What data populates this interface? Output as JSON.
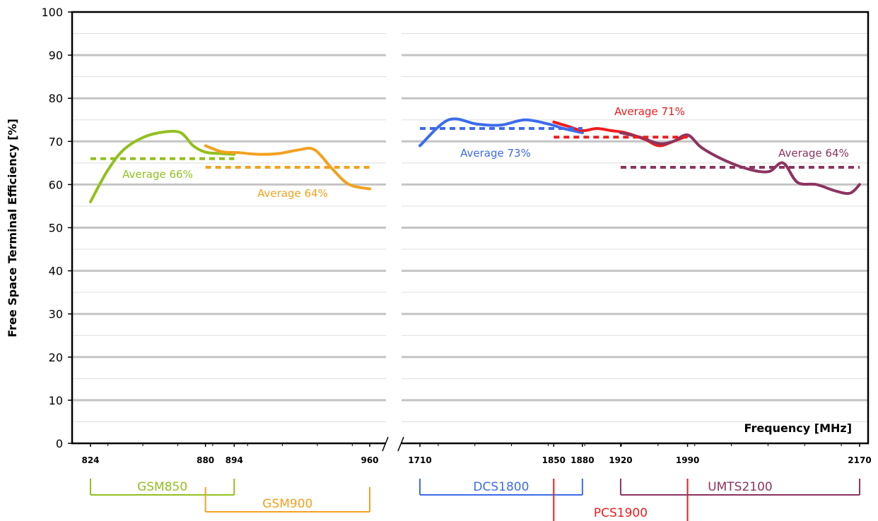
{
  "chart_data": {
    "type": "line",
    "ylabel": "Free Space Terminal Efficiency [%]",
    "xlabel": "Frequency [MHz]",
    "ylim": [
      0,
      100
    ],
    "yticks": [
      0,
      10,
      20,
      30,
      40,
      50,
      60,
      70,
      80,
      90,
      100
    ],
    "grid": true,
    "broken_x_axis": true,
    "panels": [
      {
        "xlim": [
          818,
          965
        ],
        "xticks": [
          "824",
          "880",
          "894",
          "960"
        ]
      },
      {
        "xlim": [
          1700,
          2180
        ],
        "xticks": [
          "1710",
          "1850",
          "1880",
          "1920",
          "1990",
          "2170"
        ]
      }
    ],
    "series": [
      {
        "color": "#92C01F",
        "panel": 0,
        "x": [
          824,
          832,
          840,
          850,
          860,
          868,
          874,
          880,
          887,
          894
        ],
        "y": [
          56,
          63,
          68,
          71,
          72.2,
          72,
          69,
          67.5,
          67.2,
          67
        ]
      },
      {
        "color": "#F2A11F",
        "panel": 0,
        "x": [
          880,
          888,
          896,
          906,
          916,
          925,
          933,
          942,
          950,
          960
        ],
        "y": [
          69,
          67.6,
          67.4,
          67,
          67.2,
          68,
          68.1,
          63.5,
          60,
          59
        ]
      },
      {
        "color": "#3D6CEB",
        "panel": 1,
        "x": [
          1710,
          1740,
          1770,
          1795,
          1820,
          1845,
          1860,
          1880
        ],
        "y": [
          69,
          75,
          74,
          73.8,
          75,
          74,
          73,
          72
        ]
      },
      {
        "color": "#EE1C1C",
        "panel": 1,
        "x": [
          1850,
          1865,
          1880,
          1895,
          1910,
          1925,
          1945,
          1960,
          1975,
          1990
        ],
        "y": [
          74.5,
          73.5,
          72.5,
          73,
          72.5,
          72,
          70.5,
          69,
          70,
          71.3
        ]
      },
      {
        "color": "#8C3460",
        "panel": 1,
        "x": [
          1920,
          1940,
          1960,
          1975,
          1990,
          2005,
          2030,
          2055,
          2075,
          2090,
          2105,
          2125,
          2145,
          2160,
          2170
        ],
        "y": [
          72,
          71,
          69.5,
          70,
          71.5,
          68.5,
          65.5,
          63.5,
          63,
          65,
          60.5,
          60,
          58.5,
          58,
          60
        ]
      }
    ],
    "averages": [
      {
        "label": "Average 66%",
        "value": 66,
        "color": "#92C01F",
        "panel": 0,
        "x": [
          824,
          894
        ]
      },
      {
        "label": "Average 64%",
        "value": 64,
        "color": "#F2A11F",
        "panel": 0,
        "x": [
          880,
          960
        ]
      },
      {
        "label": "Average 73%",
        "value": 73,
        "color": "#3D6CEB",
        "panel": 1,
        "x": [
          1710,
          1880
        ]
      },
      {
        "label": "Average 71%",
        "value": 71,
        "color": "#EE1C1C",
        "panel": 1,
        "x": [
          1850,
          1990
        ]
      },
      {
        "label": "Average 64%",
        "value": 64,
        "color": "#8C3460",
        "panel": 1,
        "x": [
          1920,
          2170
        ]
      }
    ],
    "bands": [
      {
        "label": "GSM850",
        "color": "#92C01F",
        "panel": 0,
        "x": [
          824,
          894
        ],
        "row": 0
      },
      {
        "label": "GSM900",
        "color": "#F2A11F",
        "panel": 0,
        "x": [
          880,
          960
        ],
        "row": 1
      },
      {
        "label": "DCS1800",
        "color": "#3D6CEB",
        "panel": 1,
        "x": [
          1710,
          1880
        ],
        "row": 0
      },
      {
        "label": "PCS1900",
        "color": "#EE1C1C",
        "panel": 1,
        "x": [
          1850,
          1990
        ],
        "row": 1
      },
      {
        "label": "UMTS2100",
        "color": "#8C3460",
        "panel": 1,
        "x": [
          1920,
          2170
        ],
        "row": 0
      }
    ]
  }
}
